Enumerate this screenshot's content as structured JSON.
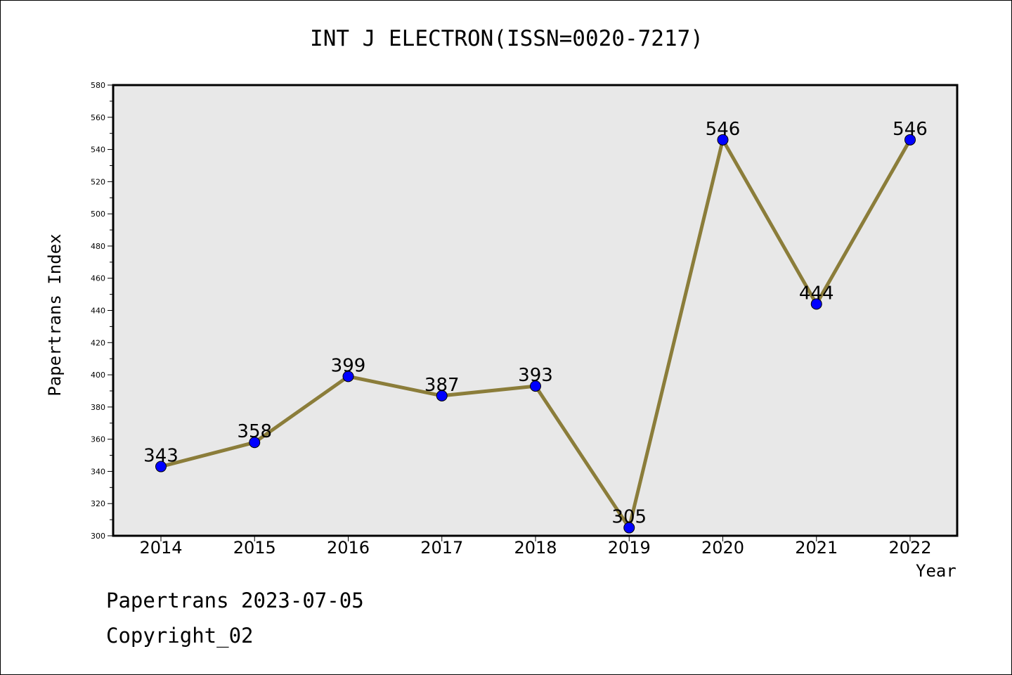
{
  "chart_data": {
    "type": "line",
    "title": "INT J ELECTRON(ISSN=0020-7217)",
    "xlabel": "Year",
    "ylabel": "Papertrans Index",
    "categories": [
      "2014",
      "2015",
      "2016",
      "2017",
      "2018",
      "2019",
      "2020",
      "2021",
      "2022"
    ],
    "series": [
      {
        "values": [
          343,
          358,
          399,
          387,
          393,
          305,
          546,
          444,
          546
        ],
        "data_labels": [
          "343",
          "358",
          "399",
          "387",
          "393",
          "305",
          "546",
          "444",
          "546"
        ]
      }
    ],
    "ylim": [
      300,
      580
    ],
    "yticks": [
      300,
      320,
      340,
      360,
      380,
      400,
      420,
      440,
      460,
      480,
      500,
      520,
      540,
      560,
      580
    ],
    "ytick_labels": [
      "300",
      "320",
      "340",
      "360",
      "380",
      "400",
      "420",
      "440",
      "460",
      "480",
      "500",
      "520",
      "540",
      "560",
      "580"
    ],
    "grid": false,
    "legend": "none",
    "colors": {
      "line": "#8b7d3a",
      "marker": "#0000ff",
      "plot_background": "#e8e8e8"
    }
  },
  "footer": {
    "date_line": "Papertrans 2023-07-05",
    "copyright": "Copyright_02"
  }
}
